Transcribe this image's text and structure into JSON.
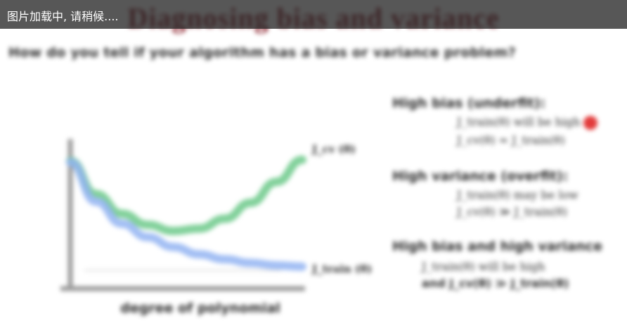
{
  "loading_banner": {
    "text": "图片加载中, 请稍候...."
  },
  "slide": {
    "title": "Diagnosing bias and variance",
    "question": "How do you tell if your algorithm has a bias or variance problem?",
    "right_panel": {
      "bias_heading": "High bias (underfit):",
      "bias_formula": "J_train(θ) will be high",
      "bias_formula_2": "J_cv(θ) ≈ J_train(θ)",
      "variance_heading": "High variance (overfit):",
      "variance_formula": "J_train(θ) may be low",
      "variance_formula_2": "J_cv(θ) ≫ J_train(θ)",
      "both_heading": "High bias and high variance",
      "both_formula": "J_train(θ) will be high",
      "both_note": "and J_cv(θ) ≫ J_train(θ)"
    },
    "colors": {
      "title": "#8a1f2a",
      "cv_curve": "#6cc98a",
      "train_curve": "#93b4f2",
      "pointer": "#e23a3a"
    }
  },
  "chart_data": {
    "type": "line",
    "xlabel": "degree of polynomial",
    "ylabel": "",
    "x": [
      1,
      2,
      3,
      4,
      5,
      6,
      7,
      8,
      9,
      10
    ],
    "xlim": [
      1,
      10
    ],
    "ylim": [
      0,
      10
    ],
    "series": [
      {
        "name": "J_cv(θ)",
        "label": "J_cv (θ)",
        "color": "#6cc98a",
        "values": [
          8.9,
          6.2,
          4.6,
          3.7,
          3.2,
          3.4,
          4.2,
          5.5,
          7.2,
          9.0
        ]
      },
      {
        "name": "J_train(θ)",
        "label": "J_train (θ)",
        "color": "#93b4f2",
        "values": [
          8.8,
          5.6,
          3.8,
          2.7,
          1.9,
          1.3,
          0.9,
          0.6,
          0.4,
          0.3
        ]
      }
    ],
    "grid": false,
    "legend": "inline at curve ends"
  }
}
